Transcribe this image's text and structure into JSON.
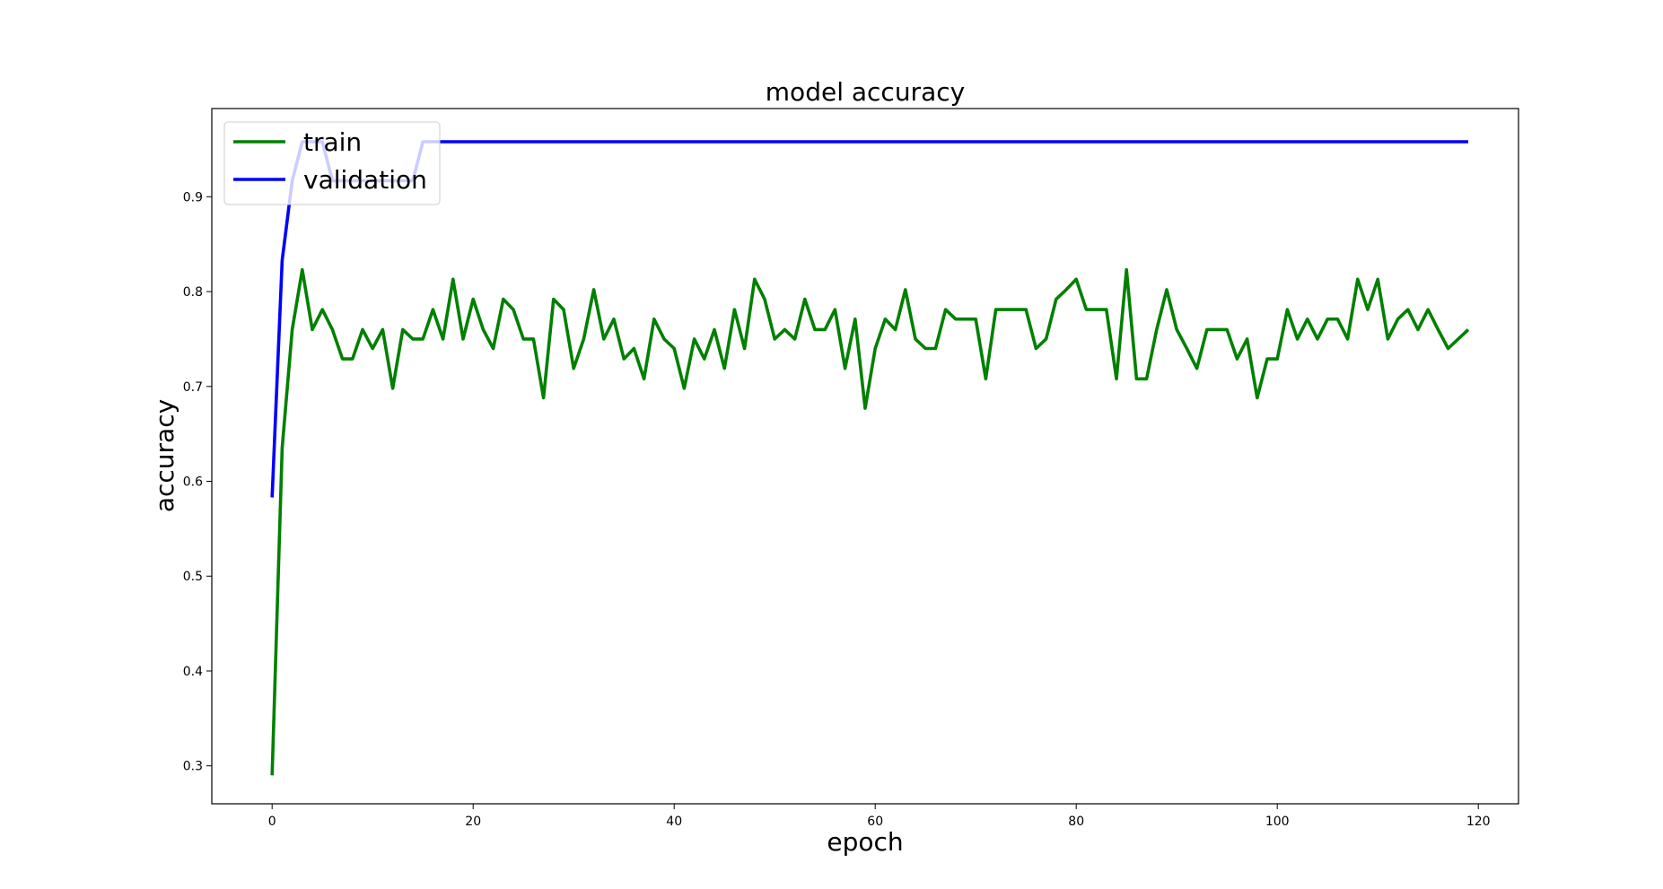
{
  "chart_data": {
    "type": "line",
    "title": "model accuracy",
    "xlabel": "epoch",
    "ylabel": "accuracy",
    "xlim": [
      -6,
      124
    ],
    "ylim": [
      0.26,
      0.993
    ],
    "xticks": [
      0,
      20,
      40,
      60,
      80,
      100,
      120
    ],
    "yticks": [
      0.3,
      0.4,
      0.5,
      0.6,
      0.7,
      0.8,
      0.9
    ],
    "grid": false,
    "legend_position": "upper left",
    "series": [
      {
        "name": "train",
        "color": "#008000",
        "values": [
          0.29,
          0.635,
          0.76,
          0.823,
          0.76,
          0.781,
          0.76,
          0.729,
          0.729,
          0.76,
          0.74,
          0.76,
          0.698,
          0.76,
          0.75,
          0.75,
          0.781,
          0.75,
          0.813,
          0.75,
          0.792,
          0.76,
          0.74,
          0.792,
          0.781,
          0.75,
          0.75,
          0.688,
          0.792,
          0.781,
          0.719,
          0.75,
          0.802,
          0.75,
          0.771,
          0.729,
          0.74,
          0.708,
          0.771,
          0.75,
          0.74,
          0.698,
          0.75,
          0.729,
          0.76,
          0.719,
          0.781,
          0.74,
          0.813,
          0.792,
          0.75,
          0.76,
          0.75,
          0.792,
          0.76,
          0.76,
          0.781,
          0.719,
          0.771,
          0.677,
          0.74,
          0.771,
          0.76,
          0.802,
          0.75,
          0.74,
          0.74,
          0.781,
          0.771,
          0.771,
          0.771,
          0.708,
          0.781,
          0.781,
          0.781,
          0.781,
          0.74,
          0.75,
          0.792,
          0.802,
          0.813,
          0.781,
          0.781,
          0.781,
          0.708,
          0.823,
          0.708,
          0.708,
          0.76,
          0.802,
          0.76,
          0.74,
          0.719,
          0.76,
          0.76,
          0.76,
          0.729,
          0.75,
          0.688,
          0.729,
          0.729,
          0.781,
          0.75,
          0.771,
          0.75,
          0.771,
          0.771,
          0.75,
          0.813,
          0.781,
          0.813,
          0.75,
          0.771,
          0.781,
          0.76,
          0.781,
          0.76,
          0.74,
          0.75,
          0.76
        ]
      },
      {
        "name": "validation",
        "color": "#0000ff",
        "values": [
          0.583,
          0.833,
          0.917,
          0.958,
          0.958,
          0.958,
          0.917,
          0.917,
          0.917,
          0.917,
          0.917,
          0.917,
          0.917,
          0.917,
          0.917,
          0.958,
          0.958,
          0.958,
          0.958,
          0.958,
          0.958,
          0.958,
          0.958,
          0.958,
          0.958,
          0.958,
          0.958,
          0.958,
          0.958,
          0.958,
          0.958,
          0.958,
          0.958,
          0.958,
          0.958,
          0.958,
          0.958,
          0.958,
          0.958,
          0.958,
          0.958,
          0.958,
          0.958,
          0.958,
          0.958,
          0.958,
          0.958,
          0.958,
          0.958,
          0.958,
          0.958,
          0.958,
          0.958,
          0.958,
          0.958,
          0.958,
          0.958,
          0.958,
          0.958,
          0.958,
          0.958,
          0.958,
          0.958,
          0.958,
          0.958,
          0.958,
          0.958,
          0.958,
          0.958,
          0.958,
          0.958,
          0.958,
          0.958,
          0.958,
          0.958,
          0.958,
          0.958,
          0.958,
          0.958,
          0.958,
          0.958,
          0.958,
          0.958,
          0.958,
          0.958,
          0.958,
          0.958,
          0.958,
          0.958,
          0.958,
          0.958,
          0.958,
          0.958,
          0.958,
          0.958,
          0.958,
          0.958,
          0.958,
          0.958,
          0.958,
          0.958,
          0.958,
          0.958,
          0.958,
          0.958,
          0.958,
          0.958,
          0.958,
          0.958,
          0.958,
          0.958,
          0.958,
          0.958,
          0.958,
          0.958,
          0.958,
          0.958,
          0.958,
          0.958,
          0.958
        ]
      }
    ]
  }
}
